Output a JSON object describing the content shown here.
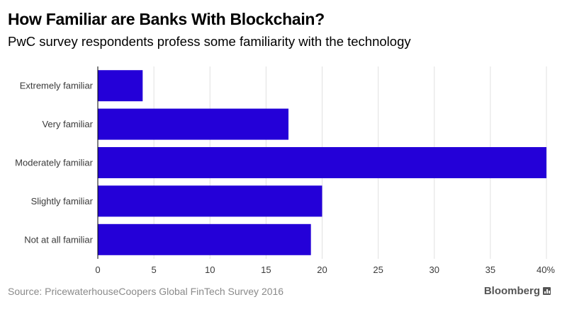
{
  "title": "How Familiar are Banks With Blockchain?",
  "subtitle": "PwC survey respondents profess some familiarity with the technology",
  "source": "Source: PricewaterhouseCoopers Global FinTech Survey 2016",
  "brand": "Bloomberg",
  "brand_icon": "bloomberg-chart-icon",
  "colors": {
    "bar": "#2400d8",
    "grid": "#e0e0e0",
    "baseline": "#000000"
  },
  "chart_data": {
    "type": "bar",
    "orientation": "horizontal",
    "title": "How Familiar are Banks With Blockchain?",
    "subtitle": "PwC survey respondents profess some familiarity with the technology",
    "categories": [
      "Extremely familiar",
      "Very familiar",
      "Moderately familiar",
      "Slightly familiar",
      "Not at all familiar"
    ],
    "values": [
      4,
      17,
      40,
      20,
      19
    ],
    "xlim": [
      0,
      40
    ],
    "x_ticks": [
      0,
      5,
      10,
      15,
      20,
      25,
      30,
      35,
      40
    ],
    "x_tick_labels": [
      "0",
      "5",
      "10",
      "15",
      "20",
      "25",
      "30",
      "35",
      "40%"
    ],
    "xlabel": "",
    "ylabel": "",
    "grid": true
  }
}
